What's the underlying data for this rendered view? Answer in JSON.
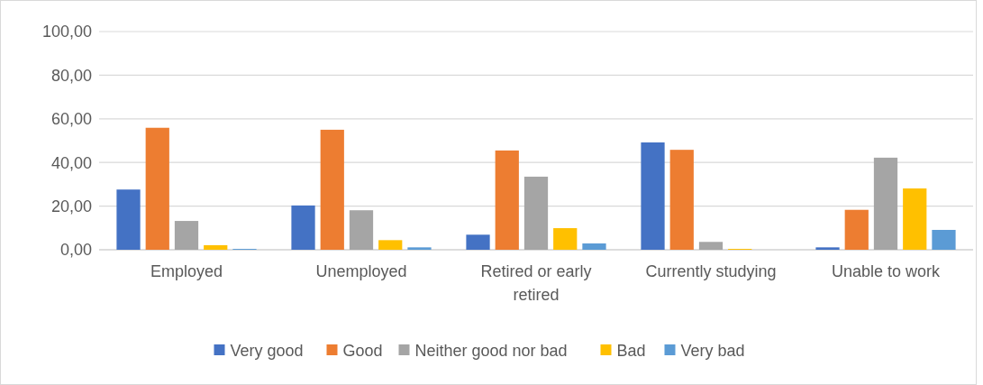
{
  "chart_data": {
    "type": "bar",
    "categories": [
      "Employed",
      "Unemployed",
      "Retired or early retired",
      "Currently studying",
      "Unable to work"
    ],
    "series": [
      {
        "name": "Very good",
        "color": "#4472c4",
        "values": [
          27.6,
          20.3,
          6.9,
          49.2,
          1.1
        ]
      },
      {
        "name": "Good",
        "color": "#ed7d31",
        "values": [
          55.9,
          55.0,
          45.5,
          45.8,
          18.3
        ]
      },
      {
        "name": "Neither good nor bad",
        "color": "#a5a5a5",
        "values": [
          13.2,
          18.1,
          33.5,
          3.6,
          42.2
        ]
      },
      {
        "name": "Bad",
        "color": "#ffc000",
        "values": [
          2.1,
          4.4,
          9.9,
          0.4,
          28.1
        ]
      },
      {
        "name": "Very bad",
        "color": "#5b9bd5",
        "values": [
          0.4,
          1.1,
          2.9,
          0,
          9.1
        ]
      }
    ],
    "ylim": [
      0,
      100
    ],
    "yticks": [
      {
        "value": 0,
        "label": "0,00"
      },
      {
        "value": 20,
        "label": "20,00"
      },
      {
        "value": 40,
        "label": "40,00"
      },
      {
        "value": 60,
        "label": "60,00"
      },
      {
        "value": 80,
        "label": "80,00"
      },
      {
        "value": 100,
        "label": "100,00"
      }
    ],
    "grid": "y",
    "legend": "bottom"
  }
}
